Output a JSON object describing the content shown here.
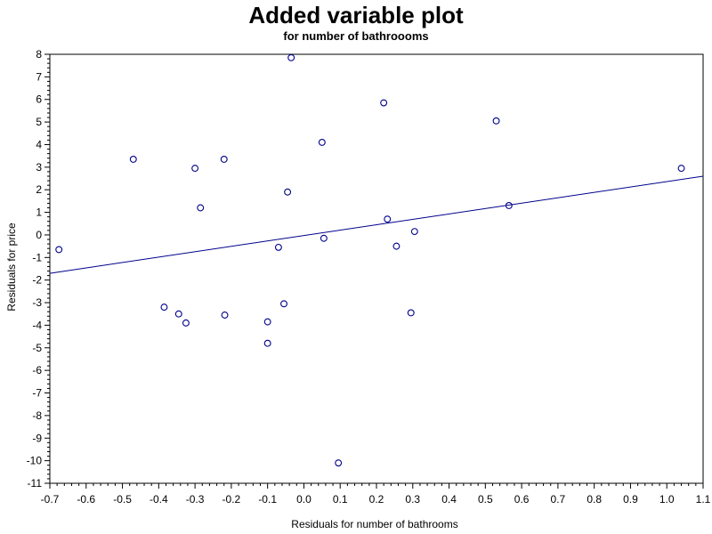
{
  "chart_data": {
    "type": "scatter",
    "title": "Added variable plot",
    "subtitle": "for number of bathroooms",
    "xlabel": "Residuals for number of bathrooms",
    "ylabel": "Residuals for price",
    "xlim": [
      -0.7,
      1.1
    ],
    "ylim": [
      -11,
      8
    ],
    "xticks": [
      "-0.7",
      "-0.6",
      "-0.5",
      "-0.4",
      "-0.3",
      "-0.2",
      "-0.1",
      "0.0",
      "0.1",
      "0.2",
      "0.3",
      "0.4",
      "0.5",
      "0.6",
      "0.7",
      "0.8",
      "0.9",
      "1.0",
      "1.1"
    ],
    "yticks": [
      "8",
      "7",
      "6",
      "5",
      "4",
      "3",
      "2",
      "1",
      "0",
      "-1",
      "-2",
      "-3",
      "-4",
      "-5",
      "-6",
      "-7",
      "-8",
      "-9",
      "-10",
      "-11"
    ],
    "grid": false,
    "colors": {
      "points": "#00008b",
      "line": "#00008b",
      "axes": "#000000"
    },
    "points": [
      {
        "x": -0.675,
        "y": -0.65
      },
      {
        "x": -0.47,
        "y": 3.35
      },
      {
        "x": -0.385,
        "y": -3.2
      },
      {
        "x": -0.345,
        "y": -3.5
      },
      {
        "x": -0.325,
        "y": -3.9
      },
      {
        "x": -0.3,
        "y": 2.95
      },
      {
        "x": -0.285,
        "y": 1.2
      },
      {
        "x": -0.22,
        "y": 3.35
      },
      {
        "x": -0.218,
        "y": -3.55
      },
      {
        "x": -0.1,
        "y": -3.85
      },
      {
        "x": -0.1,
        "y": -4.8
      },
      {
        "x": -0.07,
        "y": -0.55
      },
      {
        "x": -0.055,
        "y": -3.05
      },
      {
        "x": -0.045,
        "y": 1.9
      },
      {
        "x": -0.035,
        "y": 7.85
      },
      {
        "x": 0.05,
        "y": 4.1
      },
      {
        "x": 0.055,
        "y": -0.15
      },
      {
        "x": 0.095,
        "y": -10.1
      },
      {
        "x": 0.22,
        "y": 5.85
      },
      {
        "x": 0.23,
        "y": 0.7
      },
      {
        "x": 0.255,
        "y": -0.5
      },
      {
        "x": 0.295,
        "y": -3.45
      },
      {
        "x": 0.305,
        "y": 0.15
      },
      {
        "x": 0.53,
        "y": 5.05
      },
      {
        "x": 0.565,
        "y": 1.3
      },
      {
        "x": 1.04,
        "y": 2.95
      }
    ],
    "fit_line": {
      "x": [
        -0.7,
        1.1
      ],
      "y": [
        -1.7,
        2.6
      ]
    }
  }
}
